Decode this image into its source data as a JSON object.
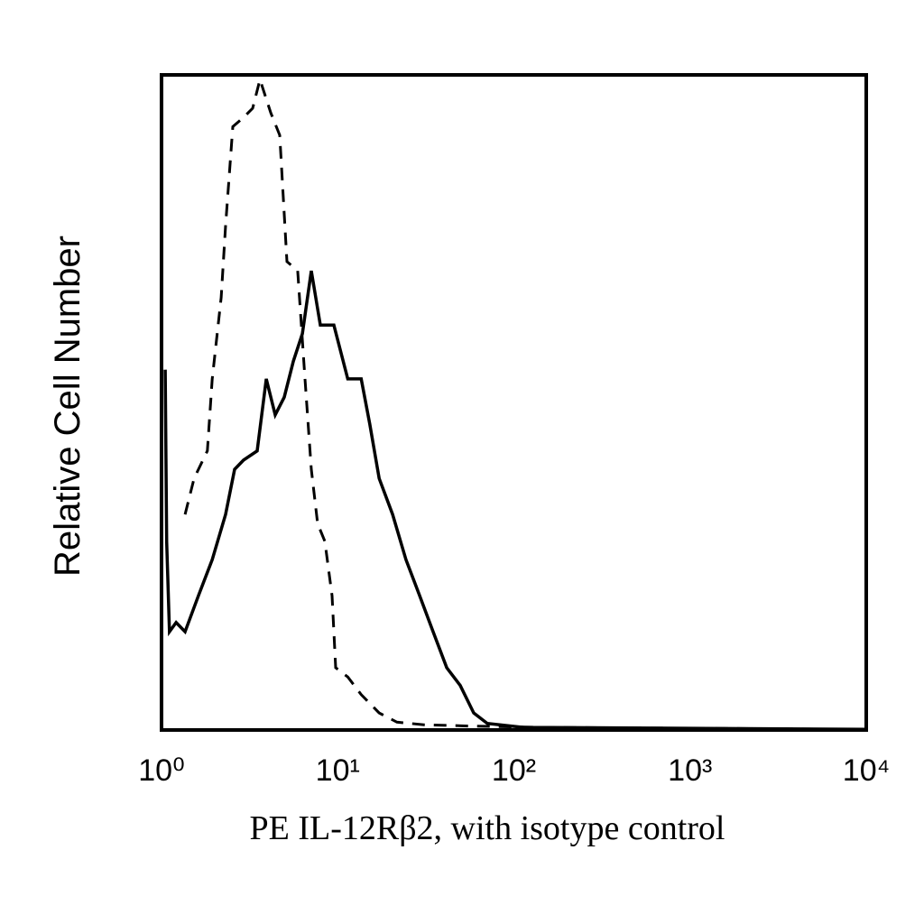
{
  "chart_data": {
    "type": "line",
    "x_label": "PE IL-12Rβ2, with isotype control",
    "y_label": "Relative Cell Number",
    "xscale": "log",
    "xlim": [
      1,
      10000
    ],
    "xticks": [
      {
        "value": 1,
        "label": "10⁰"
      },
      {
        "value": 10,
        "label": "10¹"
      },
      {
        "value": 100,
        "label": "10²"
      },
      {
        "value": 1000,
        "label": "10³"
      },
      {
        "value": 10000,
        "label": "10⁴"
      }
    ],
    "ylim": [
      0,
      100
    ],
    "grid": false,
    "series": [
      {
        "color": "#000000",
        "dashed": true,
        "x": [
          1.36,
          1.53,
          1.82,
          1.94,
          2.18,
          2.31,
          2.54,
          2.92,
          3.29,
          3.62,
          4.17,
          4.69,
          5.15,
          5.93,
          6.52,
          7.08,
          7.69,
          8.45,
          9.29,
          9.74,
          11.4,
          13.6,
          17.2,
          21.7,
          30.9,
          55.8,
          143,
          10000
        ],
        "values": [
          32.9,
          38.4,
          42.6,
          53.6,
          66.0,
          77.0,
          92.1,
          93.5,
          94.9,
          99.3,
          94.2,
          90.8,
          71.5,
          70.1,
          53.6,
          39.8,
          31.5,
          28.8,
          20.5,
          9.5,
          8.1,
          5.4,
          2.6,
          1.2,
          0.8,
          0.6,
          0.4,
          0.1
        ]
      },
      {
        "color": "#000000",
        "dashed": false,
        "x": [
          1.05,
          1.07,
          1.11,
          1.21,
          1.36,
          1.62,
          1.94,
          2.31,
          2.6,
          2.92,
          3.49,
          3.93,
          4.42,
          4.97,
          5.6,
          6.3,
          7.08,
          7.97,
          9.51,
          11.4,
          13.6,
          15.2,
          17.2,
          20.5,
          24.4,
          29.2,
          34.8,
          41.6,
          49.6,
          59.2,
          70.6,
          113,
          10000
        ],
        "values": [
          55.0,
          28.8,
          15.0,
          16.4,
          15.0,
          20.5,
          26.0,
          32.9,
          39.8,
          41.2,
          42.6,
          53.6,
          48.1,
          50.8,
          56.3,
          60.5,
          70.1,
          61.8,
          61.8,
          53.6,
          53.6,
          46.7,
          38.4,
          32.9,
          26.0,
          20.5,
          15.0,
          9.5,
          6.8,
          2.6,
          1.0,
          0.4,
          0.1
        ]
      }
    ]
  }
}
